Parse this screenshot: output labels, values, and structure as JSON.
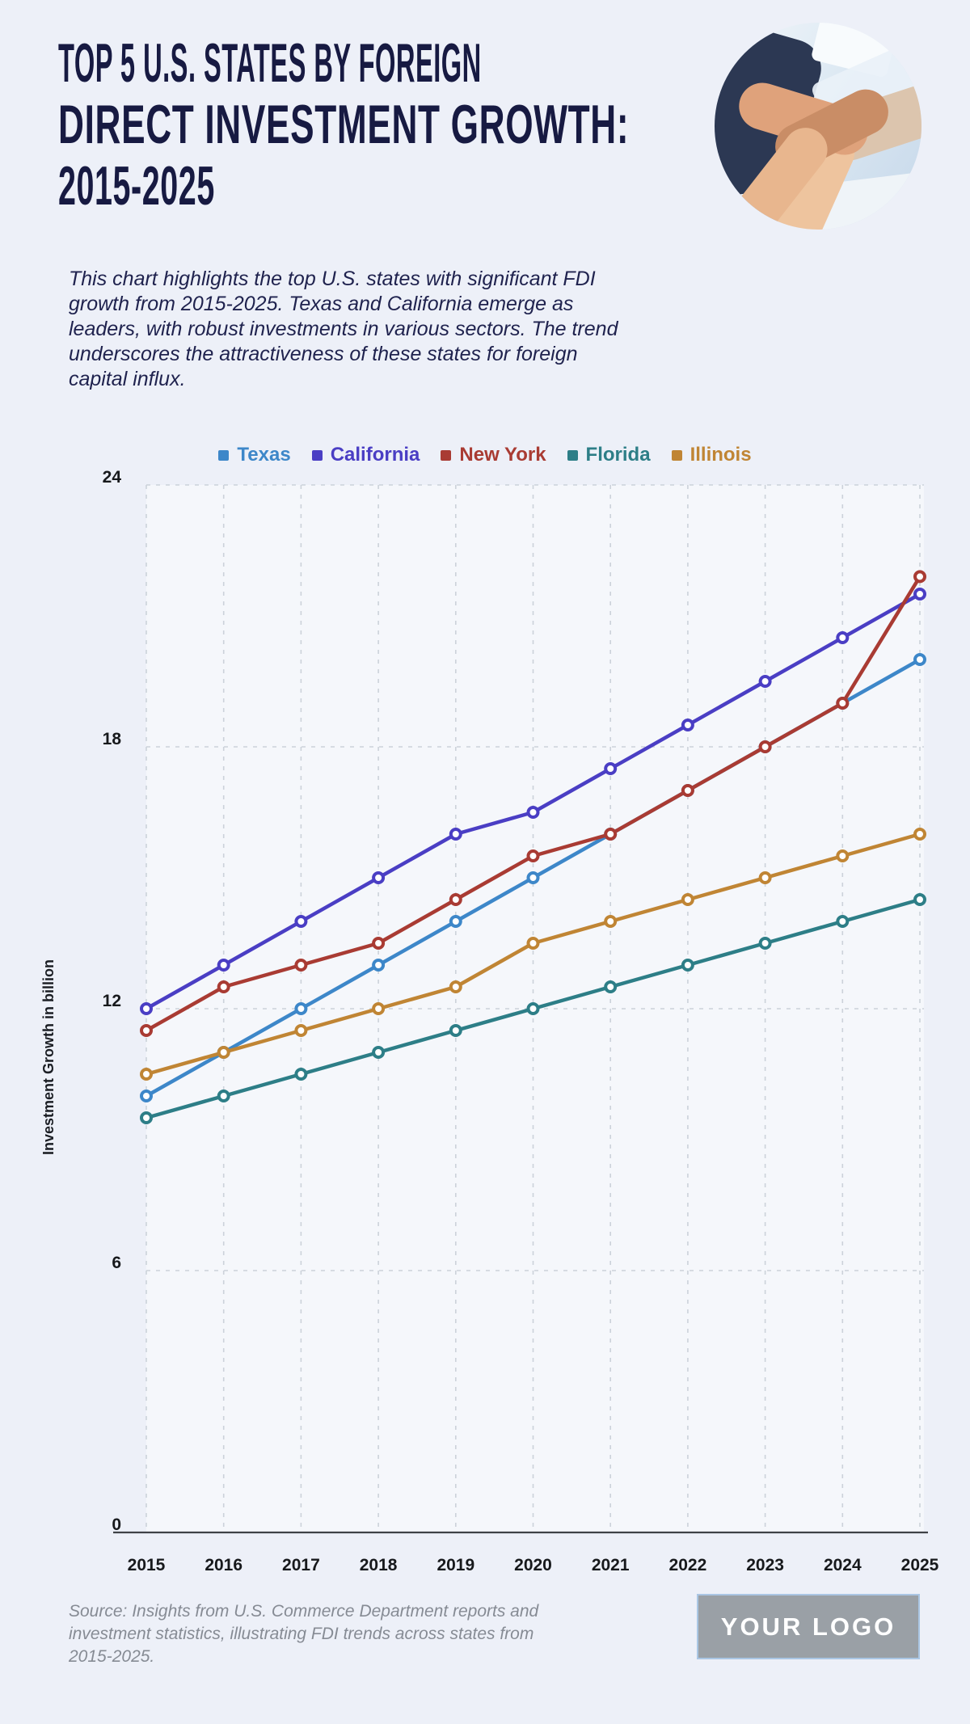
{
  "header": {
    "title_lines": [
      "TOP 5 U.S. STATES BY FOREIGN",
      "DIRECT INVESTMENT GROWTH:",
      "2015-2025"
    ],
    "description": "This chart highlights the top U.S. states with significant FDI\ngrowth from 2015-2025. Texas and California emerge as\nleaders, with robust investments in various sectors. The trend\nunderscores the attractiveness of these states for foreign\ncapital influx."
  },
  "chart_data": {
    "type": "line",
    "title": "Top 5 U.S. States by Foreign Direct Investment Growth: 2015-2025",
    "x": [
      2015,
      2016,
      2017,
      2018,
      2019,
      2020,
      2021,
      2022,
      2023,
      2024,
      2025
    ],
    "series": [
      {
        "name": "Texas",
        "color": "#3d87c9",
        "values": [
          10,
          11,
          12,
          13,
          14,
          15,
          16,
          17,
          18,
          19,
          20
        ]
      },
      {
        "name": "California",
        "color": "#4a3ec4",
        "values": [
          12,
          13,
          14,
          15,
          16,
          16.5,
          17.5,
          18.5,
          19.5,
          20.5,
          21.5
        ]
      },
      {
        "name": "New York",
        "color": "#a93b33",
        "values": [
          11.5,
          12.5,
          13,
          13.5,
          14.5,
          15.5,
          16,
          17,
          18,
          19,
          21.9
        ]
      },
      {
        "name": "Florida",
        "color": "#2d7e87",
        "values": [
          9.5,
          10,
          10.5,
          11,
          11.5,
          12,
          12.5,
          13,
          13.5,
          14,
          14.5
        ]
      },
      {
        "name": "Illinois",
        "color": "#c08534",
        "values": [
          10.5,
          11,
          11.5,
          12,
          12.5,
          13.5,
          14,
          14.5,
          15,
          15.5,
          16
        ]
      }
    ],
    "xlabel": "",
    "ylabel": "Investment Growth in billion",
    "ylim": [
      0,
      24
    ],
    "yticks": [
      0,
      6,
      12,
      18,
      24
    ],
    "grid": "dashed-both-axes",
    "legend_position": "top",
    "marker": "open-circle"
  },
  "footer": {
    "source_note": "Source: Insights from U.S. Commerce Department reports and\ninvestment statistics, illustrating FDI trends across states from\n2015-2025.",
    "logo_text": "YOUR LOGO"
  },
  "theme": {
    "background": "#edf0f8",
    "title_color": "#171a42",
    "text_color": "#1f224e",
    "tick_color": "#17191c",
    "muted_color": "#868b94",
    "grid_color": "#ccd2da",
    "axis_color": "#3f4247",
    "plot_overlay": "rgba(255,255,255,0.45)",
    "logo_bg": "#9aa0a6",
    "logo_border": "#aac6e4",
    "marker_fill": "#ffffff"
  }
}
